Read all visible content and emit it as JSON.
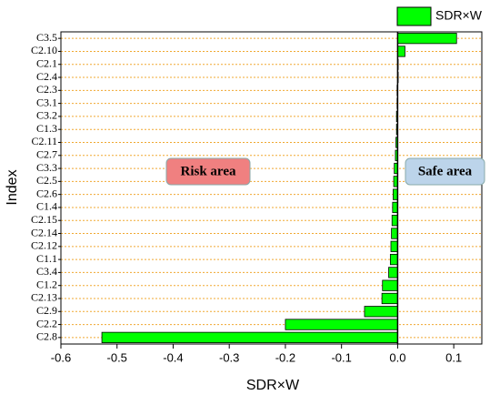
{
  "chart_data": {
    "type": "bar",
    "orientation": "horizontal",
    "x_label": "SDR×W",
    "y_label": "Index",
    "categories": [
      "C3.5",
      "C2.10",
      "C2.1",
      "C2.4",
      "C2.3",
      "C3.1",
      "C3.2",
      "C1.3",
      "C2.11",
      "C2.7",
      "C3.3",
      "C2.5",
      "C2.6",
      "C1.4",
      "C2.15",
      "C2.14",
      "C2.12",
      "C1.1",
      "C3.4",
      "C1.2",
      "C2.13",
      "C2.9",
      "C2.2",
      "C2.8"
    ],
    "series": [
      {
        "name": "SDR×W",
        "color": "#00ff00",
        "values": [
          0.105,
          0.013,
          0.001,
          0.001,
          -0.001,
          -0.001,
          -0.002,
          -0.002,
          -0.003,
          -0.004,
          -0.006,
          -0.007,
          -0.008,
          -0.009,
          -0.01,
          -0.011,
          -0.012,
          -0.013,
          -0.016,
          -0.027,
          -0.028,
          -0.059,
          -0.2,
          -0.527
        ]
      }
    ],
    "xlim": [
      -0.6,
      0.15
    ],
    "xticks": [
      -0.6,
      -0.5,
      -0.4,
      -0.3,
      -0.2,
      -0.1,
      {
        "value": 0,
        "label": "0.0"
      },
      0.1
    ],
    "grid": true,
    "legend": "top-right",
    "annotations": [
      "Risk area",
      "Safe area"
    ]
  }
}
